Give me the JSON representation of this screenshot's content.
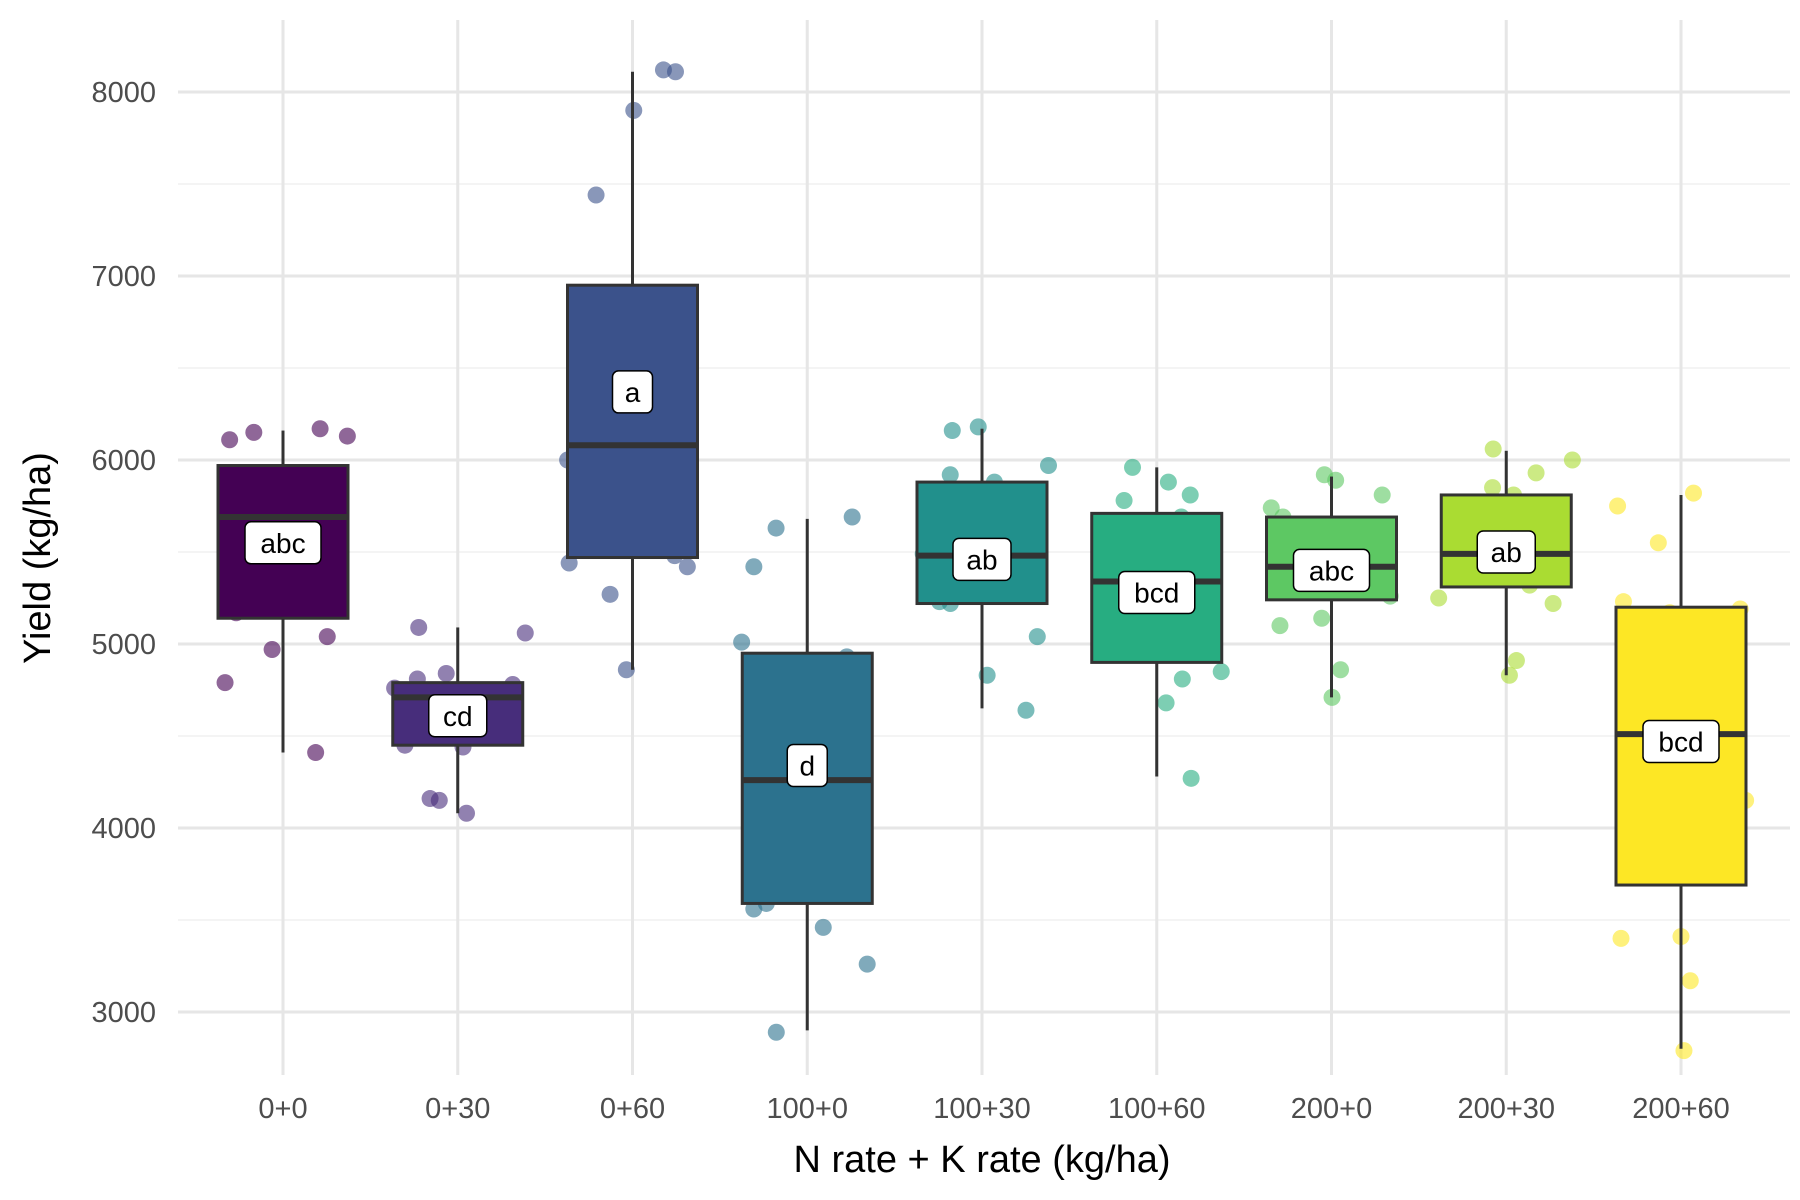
{
  "chart_data": {
    "type": "box",
    "title": "",
    "xlabel": "N rate + K rate (kg/ha)",
    "ylabel": "Yield (kg/ha)",
    "ylim": [
      2500,
      8500
    ],
    "yticks": [
      3000,
      4000,
      5000,
      6000,
      7000,
      8000
    ],
    "grid": true,
    "legend": "none",
    "categories": [
      "0+0",
      "0+30",
      "0+60",
      "100+0",
      "100+30",
      "100+60",
      "200+0",
      "200+30",
      "200+60"
    ],
    "boxes": [
      {
        "category": "0+0",
        "color": "#440154",
        "min": 4410,
        "q1": 5140,
        "median": 5690,
        "q3": 5970,
        "max": 6160,
        "letter": "abc",
        "letter_y": 5550,
        "points": [
          4410,
          4790,
          4970,
          5040,
          5170,
          5600,
          6110,
          6130,
          6150,
          6170
        ]
      },
      {
        "category": "0+30",
        "color": "#472D7B",
        "min": 4080,
        "q1": 4450,
        "median": 4710,
        "q3": 4790,
        "max": 5090,
        "letter": "cd",
        "letter_y": 4610,
        "points": [
          4080,
          4150,
          4160,
          4440,
          4450,
          4760,
          4780,
          4810,
          4840,
          5060,
          5090
        ]
      },
      {
        "category": "0+60",
        "color": "#3B528B",
        "min": 4860,
        "q1": 5470,
        "median": 6080,
        "q3": 6950,
        "max": 8110,
        "letter": "a",
        "letter_y": 6370,
        "points": [
          4860,
          5270,
          5420,
          5440,
          5480,
          6000,
          6090,
          7440,
          7900,
          8110,
          8120
        ]
      },
      {
        "category": "100+0",
        "color": "#2C728E",
        "min": 2900,
        "q1": 3590,
        "median": 4260,
        "q3": 4950,
        "max": 5680,
        "letter": "d",
        "letter_y": 4340,
        "points": [
          2890,
          3260,
          3460,
          3560,
          3590,
          4250,
          4930,
          5010,
          5420,
          5630,
          5690
        ]
      },
      {
        "category": "100+30",
        "color": "#21908C",
        "min": 4650,
        "q1": 5220,
        "median": 5480,
        "q3": 5880,
        "max": 6170,
        "letter": "ab",
        "letter_y": 5460,
        "points": [
          4640,
          4830,
          5040,
          5220,
          5230,
          5270,
          5270,
          5490,
          5880,
          5920,
          5970,
          6160,
          6180
        ]
      },
      {
        "category": "100+60",
        "color": "#27AD81",
        "min": 4280,
        "q1": 4900,
        "median": 5340,
        "q3": 5710,
        "max": 5960,
        "letter": "bcd",
        "letter_y": 5280,
        "points": [
          4270,
          4680,
          4810,
          4850,
          5690,
          5780,
          5810,
          5880,
          5960
        ]
      },
      {
        "category": "200+0",
        "color": "#5DC863",
        "min": 4710,
        "q1": 5240,
        "median": 5420,
        "q3": 5690,
        "max": 5910,
        "letter": "abc",
        "letter_y": 5400,
        "points": [
          4710,
          4860,
          5100,
          5140,
          5260,
          5690,
          5740,
          5810,
          5890,
          5920
        ]
      },
      {
        "category": "200+30",
        "color": "#AADC32",
        "min": 4830,
        "q1": 5310,
        "median": 5490,
        "q3": 5810,
        "max": 6050,
        "letter": "ab",
        "letter_y": 5500,
        "points": [
          4830,
          4910,
          5220,
          5250,
          5320,
          5450,
          5540,
          5810,
          5850,
          5930,
          6000,
          6060
        ]
      },
      {
        "category": "200+60",
        "color": "#FDE725",
        "min": 2800,
        "q1": 3690,
        "median": 4510,
        "q3": 5200,
        "max": 5810,
        "letter": "bcd",
        "letter_y": 4470,
        "points": [
          2790,
          3170,
          3400,
          3410,
          4150,
          5170,
          5190,
          5230,
          5550,
          5750,
          5820
        ]
      }
    ]
  }
}
